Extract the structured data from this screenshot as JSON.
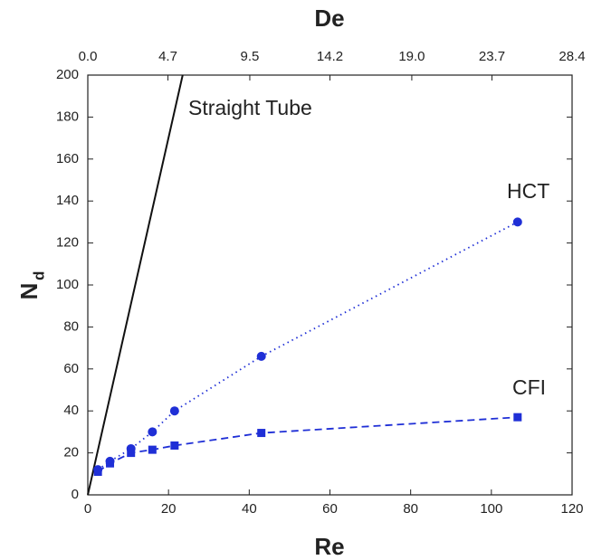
{
  "chart_data": {
    "type": "line",
    "x_label": "Re",
    "x2_label": "De",
    "y_label": "N",
    "y_label_sub": "d",
    "xlim": [
      0,
      120
    ],
    "xticks": [
      0,
      20,
      40,
      60,
      80,
      100,
      120
    ],
    "x2lim": [
      0,
      28.4
    ],
    "x2ticks": [
      {
        "value": 0,
        "label": "0.0"
      },
      4.7,
      9.5,
      14.2,
      {
        "value": 19,
        "label": "19.0"
      },
      23.7,
      28.4
    ],
    "ylim": [
      0,
      200
    ],
    "yticks": [
      0,
      20,
      40,
      60,
      80,
      100,
      120,
      140,
      160,
      180,
      200
    ],
    "series": [
      {
        "name": "Straight Tube",
        "color": "#111111",
        "linestyle": "solid",
        "marker": "none",
        "x": [
          0,
          23.5
        ],
        "values": [
          0,
          200
        ]
      },
      {
        "name": "HCT",
        "color": "#1f2fd6",
        "linestyle": "dotted",
        "marker": "circle",
        "x": [
          2.5,
          5.5,
          10.7,
          16,
          21.5,
          43,
          106.5
        ],
        "values": [
          12,
          16,
          22,
          30,
          40,
          66,
          130
        ]
      },
      {
        "name": "CFI",
        "color": "#1f2fd6",
        "linestyle": "dashed",
        "marker": "square",
        "x": [
          2.5,
          5.5,
          10.7,
          16,
          21.5,
          43,
          106.5
        ],
        "values": [
          11,
          15,
          20,
          21.5,
          23.5,
          29.5,
          37
        ]
      }
    ]
  }
}
